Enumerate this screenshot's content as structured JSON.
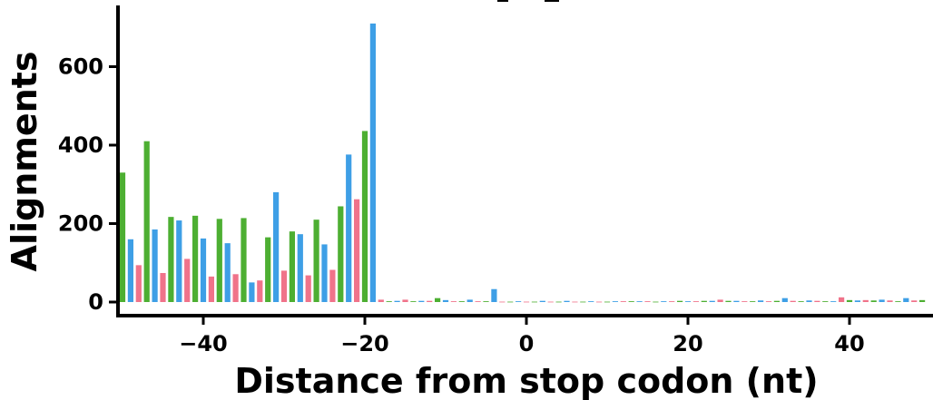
{
  "chart_data": {
    "type": "bar",
    "xlabel": "Distance from stop codon (nt)",
    "ylabel": "Alignments",
    "xlim": [
      -50,
      50
    ],
    "ylim": [
      -35,
      750
    ],
    "x_ticks": [
      -40,
      -20,
      0,
      20,
      40
    ],
    "x_tick_labels": [
      "−40",
      "−20",
      "0",
      "20",
      "40"
    ],
    "y_ticks": [
      0,
      200,
      400,
      600
    ],
    "y_tick_labels": [
      "0",
      "200",
      "400",
      "600"
    ],
    "grid": false,
    "legend": "none",
    "frame_colors": {
      "green": "#4daf32",
      "blue": "#3e9fe6",
      "pink": "#f0738a"
    },
    "x": [
      -50,
      -49,
      -48,
      -47,
      -46,
      -45,
      -44,
      -43,
      -42,
      -41,
      -40,
      -39,
      -38,
      -37,
      -36,
      -35,
      -34,
      -33,
      -32,
      -31,
      -30,
      -29,
      -28,
      -27,
      -26,
      -25,
      -24,
      -23,
      -22,
      -21,
      -20,
      -19,
      -18,
      -17,
      -16,
      -15,
      -14,
      -13,
      -12,
      -11,
      -10,
      -9,
      -8,
      -7,
      -6,
      -5,
      -4,
      -3,
      -2,
      -1,
      0,
      1,
      2,
      3,
      4,
      5,
      6,
      7,
      8,
      9,
      10,
      11,
      12,
      13,
      14,
      15,
      16,
      17,
      18,
      19,
      20,
      21,
      22,
      23,
      24,
      25,
      26,
      27,
      28,
      29,
      30,
      31,
      32,
      33,
      34,
      35,
      36,
      37,
      38,
      39,
      40,
      41,
      42,
      43,
      44,
      45,
      46,
      47,
      48,
      49
    ],
    "series": [
      {
        "color": "#4daf32",
        "frame": 0,
        "values": [
          330,
          0,
          0,
          410,
          0,
          0,
          217,
          0,
          0,
          220,
          0,
          0,
          212,
          0,
          0,
          214,
          0,
          0,
          165,
          0,
          0,
          180,
          0,
          0,
          210,
          0,
          0,
          244,
          0,
          0,
          436,
          0,
          0,
          2,
          0,
          0,
          2,
          0,
          0,
          10,
          0,
          0,
          2,
          0,
          0,
          2,
          0,
          0,
          1,
          0,
          0,
          1,
          0,
          0,
          1,
          0,
          0,
          1,
          0,
          0,
          1,
          0,
          0,
          2,
          0,
          0,
          1,
          0,
          0,
          3,
          0,
          0,
          3,
          0,
          0,
          3,
          0,
          0,
          2,
          0,
          0,
          3,
          0,
          0,
          2,
          0,
          0,
          2,
          0,
          0,
          5,
          0,
          0,
          4,
          0,
          0,
          2,
          0,
          0,
          5
        ]
      },
      {
        "color": "#3e9fe6",
        "frame": 1,
        "values": [
          0,
          160,
          0,
          0,
          185,
          0,
          0,
          208,
          0,
          0,
          162,
          0,
          0,
          150,
          0,
          0,
          50,
          0,
          0,
          280,
          0,
          0,
          173,
          0,
          0,
          147,
          0,
          0,
          376,
          0,
          0,
          710,
          0,
          0,
          3,
          0,
          0,
          3,
          0,
          0,
          5,
          0,
          0,
          6,
          0,
          0,
          33,
          0,
          0,
          2,
          0,
          0,
          3,
          0,
          0,
          3,
          0,
          0,
          2,
          0,
          0,
          2,
          0,
          0,
          2,
          0,
          0,
          2,
          0,
          0,
          2,
          0,
          0,
          3,
          0,
          0,
          3,
          0,
          0,
          4,
          0,
          0,
          10,
          0,
          0,
          4,
          0,
          0,
          2,
          0,
          0,
          4,
          0,
          0,
          6,
          0,
          0,
          10,
          0,
          0
        ]
      },
      {
        "color": "#f0738a",
        "frame": 2,
        "values": [
          0,
          0,
          94,
          0,
          0,
          74,
          0,
          0,
          110,
          0,
          0,
          65,
          0,
          0,
          71,
          0,
          0,
          55,
          0,
          0,
          80,
          0,
          0,
          68,
          0,
          0,
          82,
          0,
          0,
          262,
          0,
          0,
          6,
          0,
          0,
          6,
          0,
          0,
          3,
          0,
          0,
          2,
          0,
          0,
          2,
          0,
          0,
          1,
          0,
          0,
          1,
          0,
          0,
          1,
          0,
          0,
          1,
          0,
          0,
          1,
          0,
          0,
          2,
          0,
          0,
          2,
          0,
          0,
          2,
          0,
          0,
          2,
          0,
          0,
          6,
          0,
          0,
          2,
          0,
          0,
          2,
          0,
          0,
          3,
          0,
          0,
          3,
          0,
          0,
          12,
          0,
          0,
          5,
          0,
          0,
          4,
          0,
          0,
          4,
          0
        ]
      }
    ]
  }
}
